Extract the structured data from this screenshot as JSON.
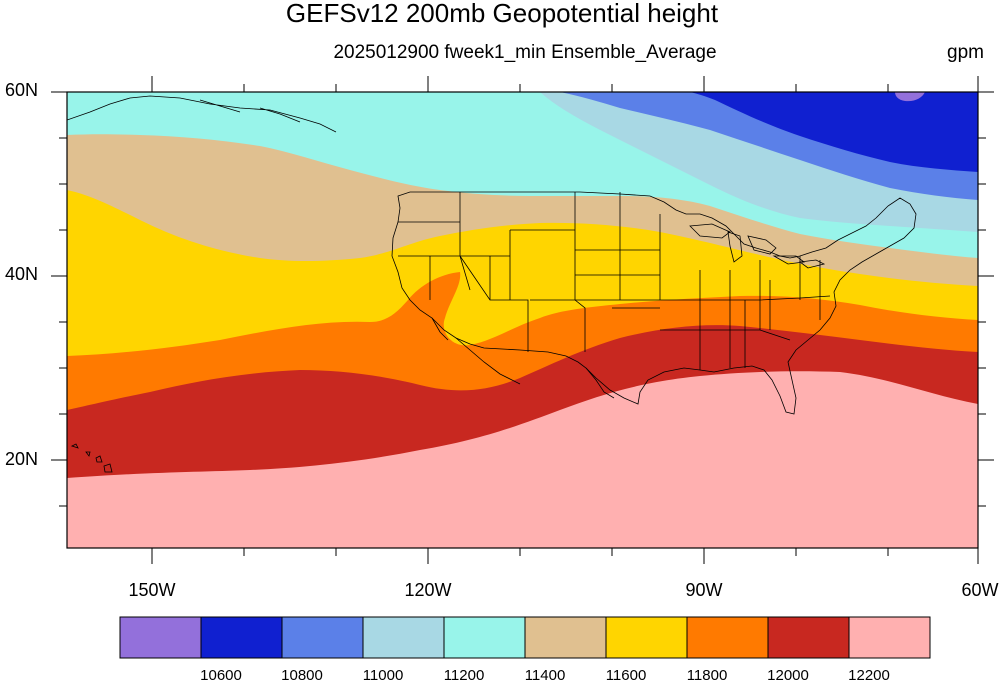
{
  "title": "GEFSv12 200mb Geopotential height",
  "subtitle": "2025012900 fweek1_min Ensemble_Average",
  "units": "gpm",
  "lat_labels": [
    "60N",
    "40N",
    "20N"
  ],
  "lon_labels": [
    "150W",
    "120W",
    "90W",
    "60W"
  ],
  "colorbar": {
    "colors": [
      "#9370db",
      "#1020d0",
      "#5b80e8",
      "#a8d8e4",
      "#98f4ea",
      "#e0c090",
      "#ffd500",
      "#ff7a00",
      "#c82820",
      "#ffb0b0"
    ],
    "labels": [
      "10600",
      "10800",
      "11000",
      "11200",
      "11400",
      "11600",
      "11800",
      "12000",
      "12200"
    ]
  },
  "chart_data": {
    "type": "heatmap",
    "title": "GEFSv12 200mb Geopotential height",
    "subtitle": "2025012900 fweek1_min Ensemble_Average",
    "units": "gpm",
    "lon_range": [
      -160,
      -60
    ],
    "lat_range": [
      10,
      60
    ],
    "contour_levels": [
      10600,
      10800,
      11000,
      11200,
      11400,
      11600,
      11800,
      12000,
      12200
    ]
  }
}
